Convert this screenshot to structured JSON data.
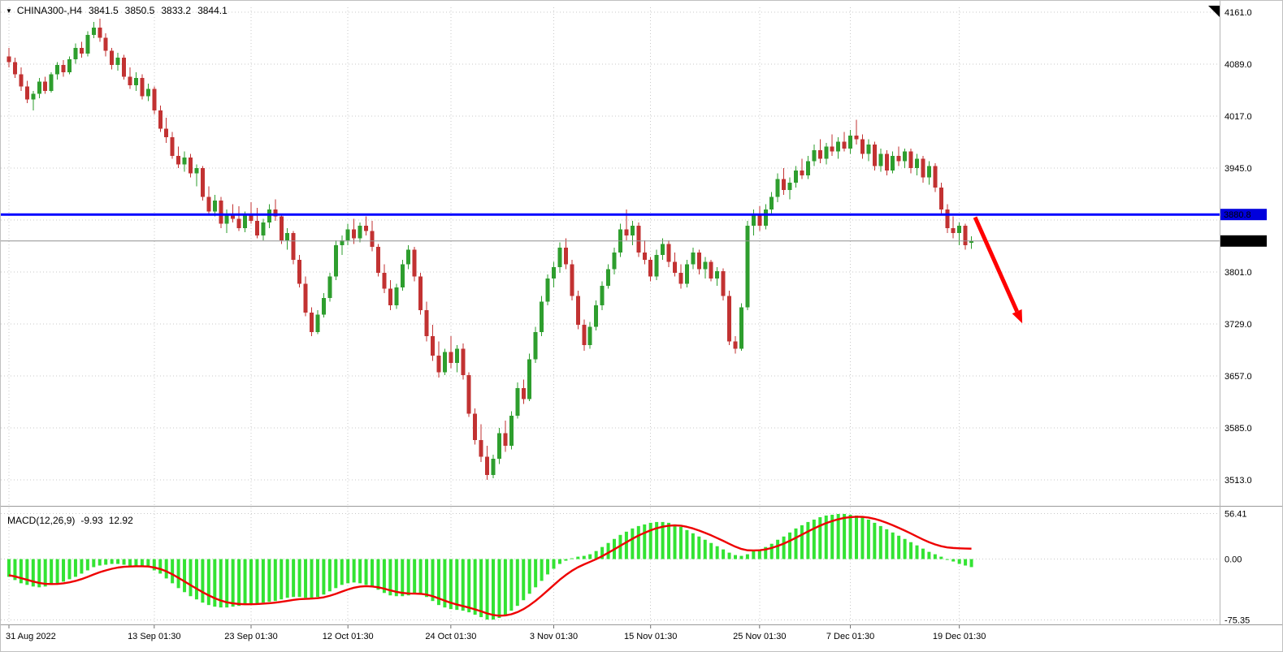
{
  "header": {
    "collapse_icon": "▼",
    "title": "CHINA300-,H4",
    "open": "3841.5",
    "high": "3850.5",
    "low": "3833.2",
    "close": "3844.1"
  },
  "macd": {
    "title": "MACD(12,26,9)",
    "main_value": "-9.93",
    "signal_value": "12.92"
  },
  "colors": {
    "up": "#2e9e2e",
    "down": "#c23232",
    "macd_hist": "#33e333",
    "signal": "#ee0000",
    "hline": "#0000ff",
    "arrow": "#ff0000",
    "grid": "#c9c9c9",
    "last_line": "#909090",
    "badge_hline_bg": "#0000dd",
    "badge_last_bg": "#000000",
    "axis_text": "#000000"
  },
  "chart_data": {
    "type": "candlestick",
    "title": "CHINA300- H4 candlestick chart with MACD(12,26,9)",
    "ylim": [
      3477,
      4168
    ],
    "price_ticks": [
      {
        "label": "4161.0",
        "value": 4161.0
      },
      {
        "label": "4089.0",
        "value": 4089.0
      },
      {
        "label": "4017.0",
        "value": 4017.0
      },
      {
        "label": "3945.0",
        "value": 3945.0
      },
      {
        "label": "",
        "value": 3873.0
      },
      {
        "label": "3801.0",
        "value": 3801.0
      },
      {
        "label": "3729.0",
        "value": 3729.0
      },
      {
        "label": "3657.0",
        "value": 3657.0
      },
      {
        "label": "3585.0",
        "value": 3585.0
      },
      {
        "label": "3513.0",
        "value": 3513.0
      }
    ],
    "x_axis_labels": [
      {
        "label": "31 Aug 2022",
        "bar": 0
      },
      {
        "label": "13 Sep 01:30",
        "bar": 24
      },
      {
        "label": "23 Sep 01:30",
        "bar": 40
      },
      {
        "label": "12 Oct 01:30",
        "bar": 56
      },
      {
        "label": "24 Oct 01:30",
        "bar": 73
      },
      {
        "label": "3 Nov 01:30",
        "bar": 90
      },
      {
        "label": "15 Nov 01:30",
        "bar": 106
      },
      {
        "label": "25 Nov 01:30",
        "bar": 124
      },
      {
        "label": "7 Dec 01:30",
        "bar": 139
      },
      {
        "label": "19 Dec 01:30",
        "bar": 157
      }
    ],
    "hline": {
      "label": "3880.8",
      "value": 3880.8
    },
    "last_price": {
      "label": "3844.1",
      "value": 3844.1
    },
    "arrow": {
      "from_bar": 159.6,
      "from_price": 3877,
      "to_bar": 167.4,
      "to_price": 3730
    },
    "candles": [
      [
        4100,
        4112,
        4085,
        4092
      ],
      [
        4092,
        4098,
        4070,
        4075
      ],
      [
        4075,
        4085,
        4052,
        4058
      ],
      [
        4058,
        4066,
        4035,
        4040
      ],
      [
        4040,
        4052,
        4025,
        4048
      ],
      [
        4048,
        4070,
        4042,
        4065
      ],
      [
        4065,
        4072,
        4048,
        4052
      ],
      [
        4052,
        4078,
        4050,
        4075
      ],
      [
        4075,
        4092,
        4068,
        4088
      ],
      [
        4088,
        4095,
        4072,
        4078
      ],
      [
        4078,
        4100,
        4075,
        4096
      ],
      [
        4096,
        4118,
        4090,
        4112
      ],
      [
        4112,
        4120,
        4098,
        4104
      ],
      [
        4104,
        4135,
        4100,
        4130
      ],
      [
        4130,
        4148,
        4125,
        4140
      ],
      [
        4140,
        4152,
        4120,
        4126
      ],
      [
        4126,
        4132,
        4100,
        4108
      ],
      [
        4108,
        4112,
        4082,
        4088
      ],
      [
        4088,
        4105,
        4080,
        4098
      ],
      [
        4098,
        4102,
        4068,
        4072
      ],
      [
        4072,
        4085,
        4055,
        4060
      ],
      [
        4060,
        4078,
        4052,
        4070
      ],
      [
        4070,
        4075,
        4040,
        4045
      ],
      [
        4045,
        4062,
        4038,
        4055
      ],
      [
        4055,
        4058,
        4020,
        4025
      ],
      [
        4025,
        4032,
        3995,
        4000
      ],
      [
        4000,
        4015,
        3980,
        3988
      ],
      [
        3988,
        3995,
        3958,
        3962
      ],
      [
        3962,
        3975,
        3945,
        3950
      ],
      [
        3950,
        3968,
        3940,
        3960
      ],
      [
        3960,
        3965,
        3932,
        3938
      ],
      [
        3938,
        3950,
        3920,
        3945
      ],
      [
        3945,
        3948,
        3900,
        3905
      ],
      [
        3905,
        3920,
        3880,
        3885
      ],
      [
        3885,
        3908,
        3878,
        3900
      ],
      [
        3900,
        3905,
        3862,
        3868
      ],
      [
        3868,
        3888,
        3855,
        3882
      ],
      [
        3882,
        3895,
        3870,
        3875
      ],
      [
        3875,
        3892,
        3858,
        3862
      ],
      [
        3862,
        3885,
        3856,
        3880
      ],
      [
        3880,
        3898,
        3868,
        3872
      ],
      [
        3872,
        3890,
        3848,
        3852
      ],
      [
        3852,
        3875,
        3845,
        3870
      ],
      [
        3870,
        3895,
        3862,
        3888
      ],
      [
        3888,
        3902,
        3872,
        3878
      ],
      [
        3878,
        3882,
        3840,
        3845
      ],
      [
        3845,
        3862,
        3832,
        3855
      ],
      [
        3855,
        3858,
        3812,
        3818
      ],
      [
        3818,
        3825,
        3780,
        3785
      ],
      [
        3785,
        3795,
        3740,
        3745
      ],
      [
        3745,
        3752,
        3712,
        3718
      ],
      [
        3718,
        3748,
        3715,
        3742
      ],
      [
        3742,
        3772,
        3738,
        3765
      ],
      [
        3765,
        3800,
        3760,
        3795
      ],
      [
        3795,
        3845,
        3790,
        3838
      ],
      [
        3838,
        3852,
        3825,
        3845
      ],
      [
        3845,
        3868,
        3838,
        3860
      ],
      [
        3860,
        3875,
        3840,
        3848
      ],
      [
        3848,
        3870,
        3842,
        3865
      ],
      [
        3865,
        3878,
        3852,
        3858
      ],
      [
        3858,
        3872,
        3830,
        3836
      ],
      [
        3836,
        3840,
        3795,
        3800
      ],
      [
        3800,
        3812,
        3772,
        3778
      ],
      [
        3778,
        3790,
        3748,
        3755
      ],
      [
        3755,
        3785,
        3750,
        3780
      ],
      [
        3780,
        3818,
        3775,
        3812
      ],
      [
        3812,
        3838,
        3805,
        3832
      ],
      [
        3832,
        3836,
        3788,
        3795
      ],
      [
        3795,
        3800,
        3742,
        3748
      ],
      [
        3748,
        3760,
        3705,
        3712
      ],
      [
        3712,
        3728,
        3678,
        3685
      ],
      [
        3685,
        3705,
        3655,
        3662
      ],
      [
        3662,
        3695,
        3658,
        3690
      ],
      [
        3690,
        3712,
        3668,
        3675
      ],
      [
        3675,
        3700,
        3662,
        3695
      ],
      [
        3695,
        3702,
        3652,
        3658
      ],
      [
        3658,
        3662,
        3600,
        3605
      ],
      [
        3605,
        3612,
        3562,
        3568
      ],
      [
        3568,
        3590,
        3538,
        3545
      ],
      [
        3545,
        3560,
        3513,
        3520
      ],
      [
        3520,
        3548,
        3515,
        3542
      ],
      [
        3542,
        3585,
        3535,
        3578
      ],
      [
        3578,
        3595,
        3552,
        3560
      ],
      [
        3560,
        3608,
        3555,
        3602
      ],
      [
        3602,
        3648,
        3598,
        3640
      ],
      [
        3640,
        3652,
        3618,
        3625
      ],
      [
        3625,
        3688,
        3622,
        3680
      ],
      [
        3680,
        3725,
        3675,
        3718
      ],
      [
        3718,
        3768,
        3712,
        3760
      ],
      [
        3760,
        3798,
        3755,
        3792
      ],
      [
        3792,
        3815,
        3780,
        3808
      ],
      [
        3808,
        3842,
        3800,
        3835
      ],
      [
        3835,
        3848,
        3805,
        3812
      ],
      [
        3812,
        3818,
        3762,
        3768
      ],
      [
        3768,
        3775,
        3722,
        3728
      ],
      [
        3728,
        3735,
        3692,
        3700
      ],
      [
        3700,
        3732,
        3695,
        3725
      ],
      [
        3725,
        3762,
        3720,
        3755
      ],
      [
        3755,
        3788,
        3748,
        3782
      ],
      [
        3782,
        3812,
        3778,
        3805
      ],
      [
        3805,
        3835,
        3798,
        3828
      ],
      [
        3828,
        3868,
        3822,
        3860
      ],
      [
        3860,
        3888,
        3845,
        3852
      ],
      [
        3852,
        3872,
        3838,
        3865
      ],
      [
        3865,
        3870,
        3822,
        3828
      ],
      [
        3828,
        3845,
        3812,
        3818
      ],
      [
        3818,
        3822,
        3788,
        3795
      ],
      [
        3795,
        3832,
        3790,
        3825
      ],
      [
        3825,
        3848,
        3818,
        3840
      ],
      [
        3840,
        3845,
        3808,
        3815
      ],
      [
        3815,
        3828,
        3795,
        3800
      ],
      [
        3800,
        3812,
        3778,
        3785
      ],
      [
        3785,
        3818,
        3780,
        3812
      ],
      [
        3812,
        3835,
        3805,
        3828
      ],
      [
        3828,
        3832,
        3798,
        3805
      ],
      [
        3805,
        3822,
        3792,
        3815
      ],
      [
        3815,
        3818,
        3788,
        3792
      ],
      [
        3792,
        3808,
        3782,
        3802
      ],
      [
        3802,
        3806,
        3762,
        3768
      ],
      [
        3768,
        3775,
        3700,
        3705
      ],
      [
        3705,
        3712,
        3688,
        3695
      ],
      [
        3695,
        3758,
        3692,
        3752
      ],
      [
        3752,
        3872,
        3748,
        3865
      ],
      [
        3865,
        3888,
        3852,
        3880
      ],
      [
        3880,
        3892,
        3858,
        3865
      ],
      [
        3865,
        3895,
        3860,
        3888
      ],
      [
        3888,
        3912,
        3882,
        3905
      ],
      [
        3905,
        3938,
        3898,
        3930
      ],
      [
        3930,
        3945,
        3908,
        3915
      ],
      [
        3915,
        3932,
        3902,
        3925
      ],
      [
        3925,
        3948,
        3918,
        3942
      ],
      [
        3942,
        3958,
        3930,
        3935
      ],
      [
        3935,
        3962,
        3930,
        3955
      ],
      [
        3955,
        3978,
        3948,
        3970
      ],
      [
        3970,
        3985,
        3952,
        3958
      ],
      [
        3958,
        3980,
        3950,
        3975
      ],
      [
        3975,
        3992,
        3962,
        3968
      ],
      [
        3968,
        3988,
        3958,
        3982
      ],
      [
        3982,
        3995,
        3968,
        3972
      ],
      [
        3972,
        3998,
        3965,
        3990
      ],
      [
        3990,
        4012,
        3978,
        3985
      ],
      [
        3985,
        3992,
        3958,
        3965
      ],
      [
        3965,
        3985,
        3955,
        3978
      ],
      [
        3978,
        3982,
        3942,
        3948
      ],
      [
        3948,
        3972,
        3940,
        3965
      ],
      [
        3965,
        3970,
        3935,
        3942
      ],
      [
        3942,
        3968,
        3938,
        3962
      ],
      [
        3962,
        3975,
        3948,
        3955
      ],
      [
        3955,
        3972,
        3945,
        3968
      ],
      [
        3968,
        3972,
        3938,
        3945
      ],
      [
        3945,
        3965,
        3935,
        3958
      ],
      [
        3958,
        3962,
        3925,
        3932
      ],
      [
        3932,
        3955,
        3922,
        3948
      ],
      [
        3948,
        3952,
        3912,
        3918
      ],
      [
        3918,
        3925,
        3882,
        3888
      ],
      [
        3888,
        3895,
        3855,
        3862
      ],
      [
        3862,
        3878,
        3848,
        3855
      ],
      [
        3855,
        3870,
        3838,
        3865
      ],
      [
        3865,
        3868,
        3832,
        3838
      ],
      [
        3841.5,
        3850.5,
        3833.2,
        3844.1
      ]
    ],
    "macd": {
      "ylim": [
        -81,
        60
      ],
      "ticks": [
        {
          "label": "56.41",
          "value": 56.41
        },
        {
          "label": "0.00",
          "value": 0
        },
        {
          "label": "-75.35",
          "value": -75.35
        }
      ],
      "histogram": [
        -22,
        -26,
        -30,
        -32,
        -34,
        -35,
        -34,
        -32,
        -30,
        -28,
        -25,
        -22,
        -18,
        -14,
        -10,
        -8,
        -7,
        -6,
        -6,
        -7,
        -8,
        -8,
        -9,
        -10,
        -14,
        -18,
        -24,
        -30,
        -36,
        -41,
        -46,
        -50,
        -54,
        -57,
        -59,
        -60,
        -60,
        -59,
        -58,
        -57,
        -56,
        -55,
        -54,
        -53,
        -52,
        -50,
        -48,
        -47,
        -47,
        -48,
        -48,
        -47,
        -44,
        -40,
        -36,
        -32,
        -30,
        -29,
        -30,
        -32,
        -35,
        -38,
        -42,
        -45,
        -46,
        -46,
        -45,
        -43,
        -44,
        -47,
        -52,
        -57,
        -60,
        -62,
        -63,
        -64,
        -66,
        -69,
        -72,
        -75,
        -75,
        -73,
        -69,
        -64,
        -58,
        -51,
        -43,
        -35,
        -27,
        -19,
        -12,
        -6,
        -2,
        1,
        3,
        4,
        6,
        10,
        15,
        20,
        25,
        30,
        34,
        38,
        41,
        43,
        45,
        46,
        46,
        45,
        43,
        40,
        36,
        32,
        28,
        24,
        20,
        16,
        12,
        8,
        5,
        4,
        6,
        10,
        12,
        15,
        19,
        24,
        28,
        33,
        38,
        42,
        46,
        49,
        52,
        54,
        55,
        56,
        56,
        55,
        54,
        52,
        49,
        45,
        41,
        37,
        33,
        29,
        25,
        21,
        17,
        13,
        9,
        6,
        3,
        0,
        -3,
        -6,
        -8,
        -9.93
      ],
      "signal": [
        -20,
        -21.5,
        -23.6,
        -25.7,
        -27.8,
        -29.6,
        -30.7,
        -31,
        -30.8,
        -30.1,
        -28.8,
        -27.1,
        -24.8,
        -22.1,
        -19.1,
        -16.3,
        -14,
        -12,
        -10.5,
        -9.6,
        -9.2,
        -8.9,
        -8.9,
        -9.2,
        -10.4,
        -12.3,
        -15.2,
        -18.9,
        -23.2,
        -27.7,
        -32.3,
        -36.7,
        -41,
        -45,
        -48.5,
        -51.4,
        -53.6,
        -54.9,
        -55.7,
        -56,
        -56,
        -55.8,
        -55.3,
        -54.7,
        -54,
        -53,
        -51.8,
        -50.6,
        -49.7,
        -49.3,
        -49,
        -48.5,
        -47.4,
        -45.5,
        -43.1,
        -40.3,
        -37.7,
        -35.5,
        -34.1,
        -33.6,
        -34,
        -35,
        -36.7,
        -38.8,
        -40.6,
        -41.9,
        -42.7,
        -42.8,
        -43.1,
        -44.1,
        -46,
        -48.8,
        -51.6,
        -54.2,
        -56.4,
        -58.3,
        -60.2,
        -62.4,
        -64.8,
        -67.4,
        -69.3,
        -70.2,
        -69.9,
        -68.4,
        -65.8,
        -62.1,
        -57.3,
        -51.7,
        -45.5,
        -38.9,
        -32.2,
        -25.6,
        -19.7,
        -14.5,
        -10.1,
        -6.6,
        -3.4,
        -0.1,
        3.7,
        7.8,
        12.1,
        16.6,
        20.9,
        25.2,
        29.2,
        32.6,
        35.7,
        38.3,
        40.2,
        41.4,
        41.8,
        41.4,
        40,
        38,
        35.5,
        32.6,
        29.5,
        26.1,
        22.6,
        18.9,
        15.4,
        12.6,
        10.9,
        10.7,
        11,
        12,
        13.8,
        16.3,
        19.2,
        22.7,
        26.5,
        30.4,
        34.3,
        38,
        41.5,
        44.6,
        47.2,
        49.4,
        51.1,
        52,
        52.5,
        52.4,
        51.5,
        49.9,
        47.7,
        45,
        42,
        38.7,
        35.3,
        31.7,
        28,
        24.3,
        21,
        18.2,
        16,
        14.5,
        13.8,
        13.4,
        13.1,
        12.92
      ]
    }
  }
}
